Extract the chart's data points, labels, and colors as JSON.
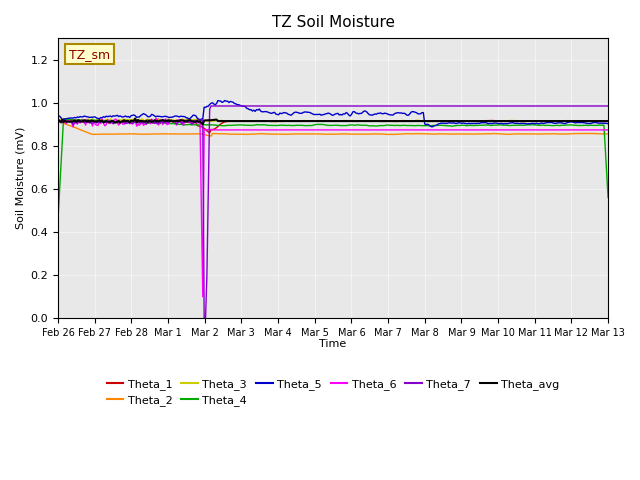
{
  "title": "TZ Soil Moisture",
  "xlabel": "Time",
  "ylabel": "Soil Moisture (mV)",
  "ylim": [
    0.0,
    1.3
  ],
  "yticks": [
    0.0,
    0.2,
    0.4,
    0.6,
    0.8,
    1.0,
    1.2
  ],
  "background_color": "#e8e8e8",
  "annotation_text": "TZ_sm",
  "annotation_color": "#8b0000",
  "annotation_bg": "#ffffcc",
  "legend_entries": [
    "Theta_1",
    "Theta_2",
    "Theta_3",
    "Theta_4",
    "Theta_5",
    "Theta_6",
    "Theta_7",
    "Theta_avg"
  ],
  "line_colors": {
    "Theta_1": "#cc0000",
    "Theta_2": "#ff8800",
    "Theta_3": "#cccc00",
    "Theta_4": "#00aa00",
    "Theta_5": "#0000cc",
    "Theta_6": "#ff00ff",
    "Theta_7": "#8800cc",
    "Theta_avg": "#000000"
  },
  "x_tick_labels": [
    "Feb 26",
    "Feb 27",
    "Feb 28",
    "Mar 1",
    "Mar 2",
    "Mar 3",
    "Mar 4",
    "Mar 5",
    "Mar 6",
    "Mar 7",
    "Mar 8",
    "Mar 9",
    "Mar 10",
    "Mar 11",
    "Mar 12",
    "Mar 13"
  ],
  "num_points": 400
}
